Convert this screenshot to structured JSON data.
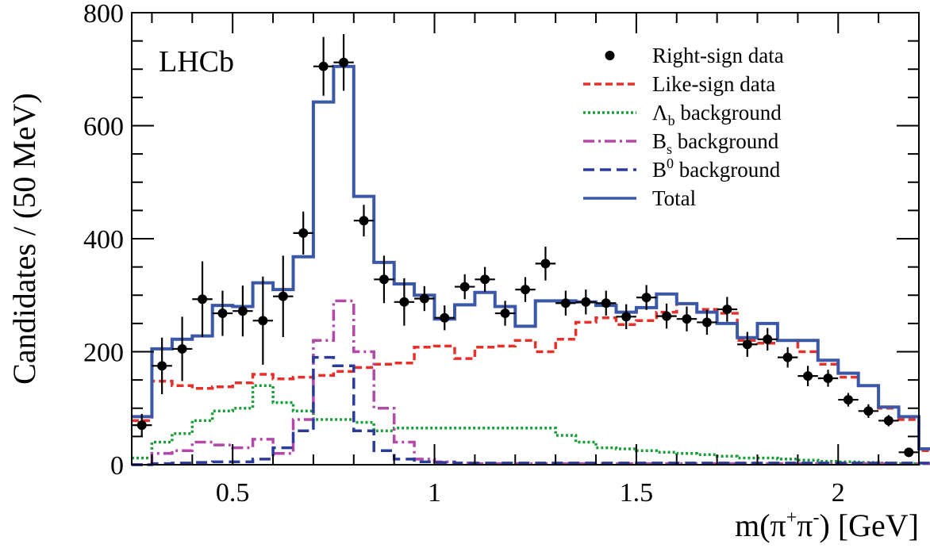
{
  "chart_data": {
    "type": "histogram",
    "experiment_label": "LHCb",
    "xlabel_parts": {
      "prefix": "m(",
      "pi1": "π",
      "sup1": "+",
      "pi2": "π",
      "sup2": "-",
      "suffix": ") [GeV]"
    },
    "ylabel": "Candidates / (50 MeV)",
    "xlim": [
      0.25,
      2.2
    ],
    "ylim": [
      0,
      800
    ],
    "x_ticks": [
      0.5,
      1,
      1.5,
      2
    ],
    "x_tick_labels": [
      "0.5",
      "1",
      "1.5",
      "2"
    ],
    "y_ticks": [
      0,
      200,
      400,
      600,
      800
    ],
    "y_tick_labels": [
      "0",
      "200",
      "400",
      "600",
      "800"
    ],
    "bin_width": 0.05,
    "data": {
      "name": "Right-sign data",
      "color": "#000000",
      "x": [
        0.275,
        0.325,
        0.375,
        0.425,
        0.475,
        0.525,
        0.575,
        0.625,
        0.675,
        0.725,
        0.775,
        0.825,
        0.875,
        0.925,
        0.975,
        1.025,
        1.075,
        1.125,
        1.175,
        1.225,
        1.275,
        1.325,
        1.375,
        1.425,
        1.475,
        1.525,
        1.575,
        1.625,
        1.675,
        1.725,
        1.775,
        1.825,
        1.875,
        1.925,
        1.975,
        2.025,
        2.075,
        2.125,
        2.175
      ],
      "y": [
        70,
        175,
        205,
        293,
        268,
        272,
        255,
        298,
        410,
        705,
        712,
        432,
        328,
        288,
        294,
        260,
        315,
        328,
        268,
        310,
        356,
        286,
        288,
        286,
        262,
        296,
        263,
        258,
        252,
        275,
        213,
        222,
        190,
        157,
        153,
        115,
        95,
        78,
        22
      ],
      "yerr": [
        20,
        50,
        57,
        67,
        40,
        45,
        78,
        72,
        38,
        52,
        50,
        28,
        42,
        42,
        22,
        22,
        22,
        22,
        22,
        22,
        30,
        22,
        22,
        22,
        22,
        22,
        22,
        22,
        22,
        22,
        22,
        20,
        18,
        18,
        15,
        12,
        12,
        10,
        8
      ]
    },
    "series": [
      {
        "name": "Like-sign data",
        "color": "#e8302a",
        "dash": "short-dash",
        "edges_start": 0.25,
        "values": [
          78,
          148,
          140,
          135,
          138,
          145,
          160,
          152,
          155,
          158,
          165,
          172,
          178,
          180,
          208,
          210,
          188,
          208,
          210,
          220,
          200,
          222,
          252,
          260,
          248,
          255,
          270,
          285,
          275,
          268,
          220,
          215,
          220,
          200,
          178,
          155,
          140,
          100,
          80,
          25
        ]
      },
      {
        "name": "Λ_b background",
        "color": "#1a9e3a",
        "dash": "dotted",
        "edges_start": 0.25,
        "values": [
          12,
          40,
          55,
          78,
          95,
          100,
          140,
          110,
          95,
          80,
          80,
          75,
          60,
          65,
          65,
          65,
          65,
          65,
          65,
          65,
          65,
          52,
          40,
          30,
          28,
          25,
          22,
          20,
          18,
          15,
          12,
          12,
          10,
          8,
          6,
          5,
          4,
          3,
          2,
          2
        ]
      },
      {
        "name": "B_s background",
        "color": "#b348a8",
        "dash": "dash-dot",
        "edges_start": 0.25,
        "values": [
          0,
          20,
          25,
          40,
          35,
          30,
          45,
          20,
          80,
          220,
          290,
          200,
          100,
          40,
          10,
          5,
          3,
          2,
          2,
          2,
          2,
          2,
          2,
          2,
          2,
          2,
          2,
          2,
          2,
          2,
          2,
          2,
          2,
          2,
          2,
          2,
          2,
          2,
          2,
          2
        ]
      },
      {
        "name": "B^0 background",
        "color": "#2b3b9c",
        "dash": "long-dash",
        "edges_start": 0.25,
        "values": [
          0,
          2,
          3,
          4,
          5,
          5,
          10,
          30,
          60,
          190,
          175,
          60,
          25,
          10,
          5,
          4,
          3,
          3,
          3,
          3,
          3,
          3,
          3,
          3,
          3,
          3,
          3,
          3,
          3,
          3,
          3,
          3,
          3,
          3,
          3,
          3,
          3,
          3,
          3,
          3
        ]
      },
      {
        "name": "Total",
        "color": "#3a57a8",
        "dash": "solid",
        "edges_start": 0.25,
        "values": [
          85,
          205,
          222,
          228,
          282,
          280,
          322,
          310,
          368,
          642,
          705,
          475,
          358,
          320,
          300,
          258,
          283,
          305,
          280,
          245,
          290,
          290,
          288,
          282,
          270,
          278,
          302,
          285,
          270,
          250,
          225,
          250,
          220,
          220,
          185,
          162,
          140,
          102,
          85,
          28
        ]
      }
    ],
    "legend": {
      "position": "top-right",
      "items": [
        {
          "marker": "dot",
          "color": "#000000",
          "label": "Right-sign data"
        },
        {
          "marker": "line",
          "style": "short-dash",
          "color": "#e8302a",
          "label": "Like-sign data"
        },
        {
          "marker": "line",
          "style": "dotted",
          "color": "#1a9e3a",
          "label_main": "Λ",
          "label_sub": "b",
          "label_rest": " background"
        },
        {
          "marker": "line",
          "style": "dash-dot",
          "color": "#b348a8",
          "label_main": "B",
          "label_sub": "s",
          "label_rest": " background"
        },
        {
          "marker": "line",
          "style": "long-dash",
          "color": "#2b3b9c",
          "label_main": "B",
          "label_sup": "0",
          "label_rest": " background"
        },
        {
          "marker": "line",
          "style": "solid",
          "color": "#3a57a8",
          "label": "Total"
        }
      ]
    }
  }
}
